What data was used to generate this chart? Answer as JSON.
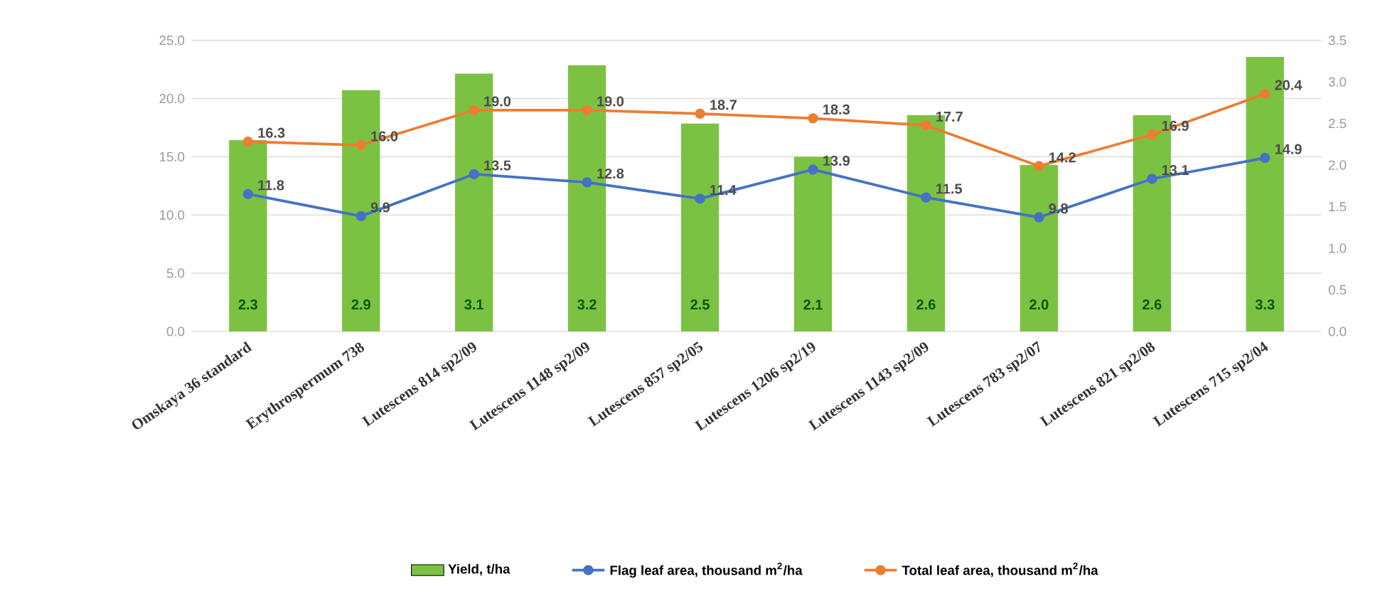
{
  "chart_data": {
    "type": "bar",
    "categories": [
      "Omskaya 36 standard",
      "Erythrospermum 738",
      "Lutescens  814 sp2/09",
      "Lutescens 1148 sp2/09",
      "Lutescens  857 sp2/05",
      "Lutescens  1206 sp2/19",
      "Lutescens  1143 sp2/09",
      "Lutescens  783 sp2/07",
      "Lutescens  821 sp2/08",
      "Lutescens 715 sp2/04"
    ],
    "series": [
      {
        "name": "Yield, t/ha",
        "axis": "y2",
        "color": "#7cc242",
        "values": [
          2.3,
          2.9,
          3.1,
          3.2,
          2.5,
          2.1,
          2.6,
          2.0,
          2.6,
          3.3
        ],
        "value_labels": [
          "2.3",
          "2.9",
          "3.1",
          "3.2",
          "2.5",
          "2.1",
          "2.6",
          "2.0",
          "2.6",
          "3.3"
        ]
      },
      {
        "name": "Flag leaf area, thousand m$^{2}$/ha",
        "type": "line",
        "color": "#4472c4",
        "values": [
          11.8,
          9.9,
          13.5,
          12.8,
          11.4,
          13.9,
          11.5,
          9.8,
          13.1,
          14.9
        ],
        "value_labels": [
          "11.8",
          "9.9",
          "13.5",
          "12.8",
          "11.4",
          "13.9",
          "11.5",
          "9.8",
          "13.1",
          "14.9"
        ]
      },
      {
        "name": "Total leaf area, thousand m$^{2}$/ha",
        "type": "line",
        "color": "#ed7d31",
        "values": [
          16.3,
          16.0,
          19.0,
          19.0,
          18.7,
          18.3,
          17.7,
          14.2,
          16.9,
          20.4
        ],
        "value_labels": [
          "16.3",
          "16.0",
          "19.0",
          "19.0",
          "18.7",
          "18.3",
          "17.7",
          "14.2",
          "16.9",
          "20.4"
        ]
      }
    ],
    "ylim": [
      0,
      25
    ],
    "yticks": [
      {
        "value": 0,
        "label": "0.0"
      },
      {
        "value": 5,
        "label": "5.0"
      },
      {
        "value": 10,
        "label": "10.0"
      },
      {
        "value": 15,
        "label": "15.0"
      },
      {
        "value": 20,
        "label": "20.0"
      },
      {
        "value": 25,
        "label": "25.0"
      }
    ],
    "y2lim": [
      0,
      3.5
    ],
    "y2ticks": [
      {
        "value": 0,
        "label": "0.0"
      },
      0.5,
      {
        "value": 1,
        "label": "1.0"
      },
      1.5,
      {
        "value": 2,
        "label": "2.0"
      },
      2.5,
      {
        "value": 3,
        "label": "3.0"
      },
      3.5
    ],
    "grid": "y",
    "legend": "bottom",
    "marker": "circle"
  }
}
